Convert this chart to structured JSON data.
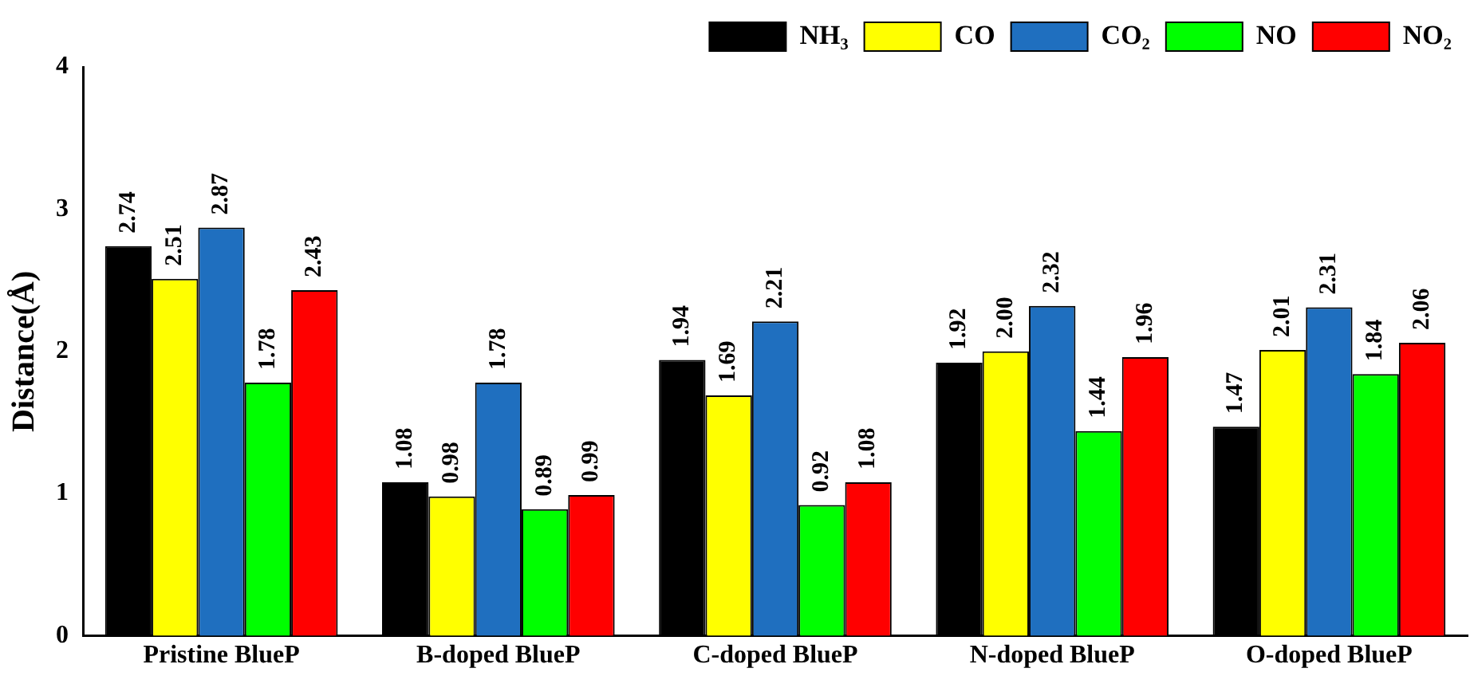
{
  "chart_data": {
    "type": "bar",
    "ylabel": "Distance(Å)",
    "categories": [
      "Pristine BlueP",
      "B-doped BlueP",
      "C-doped BlueP",
      "N-doped BlueP",
      "O-doped BlueP"
    ],
    "series": [
      {
        "name": "NH₃",
        "color": "#000000",
        "values": [
          2.74,
          1.08,
          1.94,
          1.92,
          1.47
        ],
        "value_labels": [
          "2.74",
          "1.08",
          "1.94",
          "1.92",
          "1.47"
        ]
      },
      {
        "name": "CO",
        "color": "#ffff00",
        "values": [
          2.51,
          0.98,
          1.69,
          2.0,
          2.01
        ],
        "value_labels": [
          "2.51",
          "0.98",
          "1.69",
          "2.00",
          "2.01"
        ]
      },
      {
        "name": "CO₂",
        "color": "#1f6fbf",
        "values": [
          2.87,
          1.78,
          2.21,
          2.32,
          2.31
        ],
        "value_labels": [
          "2.87",
          "1.78",
          "2.21",
          "2.32",
          "2.31"
        ]
      },
      {
        "name": "NO",
        "color": "#00ff00",
        "values": [
          1.78,
          0.89,
          0.92,
          1.44,
          1.84
        ],
        "value_labels": [
          "1.78",
          "0.89",
          "0.92",
          "1.44",
          "1.84"
        ]
      },
      {
        "name": "NO₂",
        "color": "#ff0000",
        "values": [
          2.43,
          0.99,
          1.08,
          1.96,
          2.06
        ],
        "value_labels": [
          "2.43",
          "0.99",
          "1.08",
          "1.96",
          "2.06"
        ]
      }
    ],
    "ylim": [
      0,
      4
    ],
    "yticks": [
      0,
      1,
      2,
      3,
      4
    ],
    "grid": false,
    "legend": "top right"
  }
}
